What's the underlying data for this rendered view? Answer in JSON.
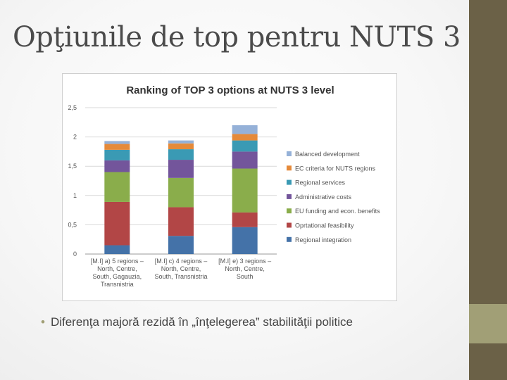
{
  "slide": {
    "title": "Opţiunile de top pentru NUTS 3",
    "bullet": "Diferenţa majoră rezidă în „înţelegerea” stabilităţii politice"
  },
  "colors": {
    "sidebar_dark": "#6b6147",
    "sidebar_light": "#a19f76"
  },
  "chart_data": {
    "type": "bar",
    "stacked": true,
    "title": "Ranking  of TOP 3 options at NUTS 3 level",
    "xlabel": "",
    "ylabel": "",
    "ylim": [
      0,
      2.5
    ],
    "yticks": [
      "0",
      "0,5",
      "1",
      "1,5",
      "2",
      "2,5"
    ],
    "grid": true,
    "legend_position": "right",
    "categories": [
      [
        "[M.I] a) 5 regions –",
        "North, Centre,",
        "South, Gagauzia,",
        "Transnistria"
      ],
      [
        "[M.I] c)  4 regions –",
        "North, Centre,",
        "South, Transnistria"
      ],
      [
        "[M.I] e)  3 regions –",
        "North, Centre,",
        "South"
      ]
    ],
    "series": [
      {
        "name": "Regional integration",
        "color": "#4472a8",
        "values": [
          0.15,
          0.31,
          0.46
        ]
      },
      {
        "name": "Oprtational feasibility",
        "color": "#b24646",
        "values": [
          0.74,
          0.49,
          0.25
        ]
      },
      {
        "name": "EU funding and econ. benefits",
        "color": "#8aad4b",
        "values": [
          0.51,
          0.5,
          0.75
        ]
      },
      {
        "name": "Administrative costs",
        "color": "#73559b",
        "values": [
          0.2,
          0.31,
          0.29
        ]
      },
      {
        "name": "Regional services",
        "color": "#3a9ab4",
        "values": [
          0.18,
          0.18,
          0.19
        ]
      },
      {
        "name": "EC criteria for NUTS regions",
        "color": "#e58a3a",
        "values": [
          0.1,
          0.1,
          0.11
        ]
      },
      {
        "name": "Balanced development",
        "color": "#95b1d8",
        "values": [
          0.05,
          0.05,
          0.15
        ]
      }
    ]
  }
}
